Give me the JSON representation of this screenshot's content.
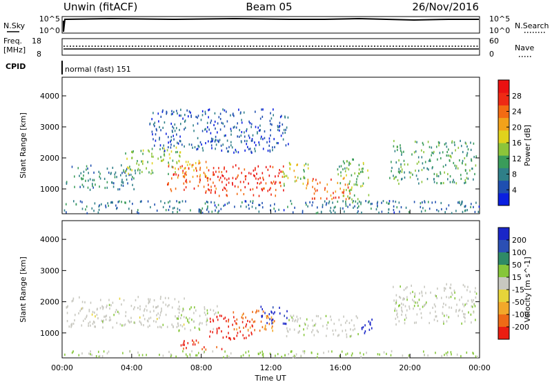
{
  "header": {
    "station": "Unwin (fitACF)",
    "beam": "Beam 05",
    "date": "26/Nov/2016"
  },
  "top_panels": {
    "nsky_label": "N.Sky",
    "nsky_ticks": [
      "10^5",
      "10^0"
    ],
    "nsearch_label": "N.Search",
    "nsearch_ticks": [
      "10^5",
      "10^0"
    ],
    "freq_label_1": "Freq.",
    "freq_label_2": "[MHz]",
    "freq_ticks": [
      "18",
      "8"
    ],
    "nave_label": "Nave",
    "nave_ticks": [
      "60",
      "0"
    ],
    "cpid_label": "CPID",
    "cpid_value": "normal (fast) 151"
  },
  "chart_data": [
    {
      "type": "heatmap",
      "panel": "power",
      "ylabel": "Slant Range [km]",
      "yticks": [
        "1000",
        "2000",
        "3000",
        "4000"
      ],
      "ylim": [
        200,
        4600
      ],
      "xlim": [
        0,
        24
      ],
      "colorbar": {
        "label": "Power [dB]",
        "ticks": [
          "4",
          "8",
          "12",
          "16",
          "20",
          "24",
          "28"
        ],
        "range": [
          0,
          32
        ],
        "colors": [
          "#0a1fe0",
          "#1f4fb0",
          "#2f7f88",
          "#3a9c5a",
          "#8cc43a",
          "#e0d21c",
          "#f2a21a",
          "#f36b12",
          "#ee2a14",
          "#ea1111"
        ]
      },
      "regions": [
        {
          "t0": 0.2,
          "t1": 4.2,
          "r0": 1000,
          "r1": 1800,
          "val": 8
        },
        {
          "t0": 3.6,
          "t1": 6.8,
          "r0": 1500,
          "r1": 2400,
          "val": 14
        },
        {
          "t0": 6.0,
          "t1": 9.0,
          "r0": 900,
          "r1": 1800,
          "val": 26
        },
        {
          "t0": 6.6,
          "t1": 8.4,
          "r0": 1400,
          "r1": 2000,
          "val": 20
        },
        {
          "t0": 9.0,
          "t1": 12.8,
          "r0": 800,
          "r1": 1800,
          "val": 28
        },
        {
          "t0": 12.6,
          "t1": 14.2,
          "r0": 1100,
          "r1": 1900,
          "val": 16
        },
        {
          "t0": 14.0,
          "t1": 16.6,
          "r0": 700,
          "r1": 1400,
          "val": 24
        },
        {
          "t0": 15.8,
          "t1": 17.6,
          "r0": 600,
          "r1": 2000,
          "val": 13
        },
        {
          "t0": 18.8,
          "t1": 23.8,
          "r0": 1200,
          "r1": 2600,
          "val": 11
        },
        {
          "t0": 0.0,
          "t1": 24.0,
          "r0": 250,
          "r1": 650,
          "val": 7
        },
        {
          "t0": 5.0,
          "t1": 13.0,
          "r0": 2200,
          "r1": 3600,
          "val": 5
        }
      ]
    },
    {
      "type": "heatmap",
      "panel": "velocity",
      "ylabel": "Slant Range [km]",
      "yticks": [
        "1000",
        "2000",
        "3000",
        "4000"
      ],
      "ylim": [
        200,
        4600
      ],
      "xlim": [
        0,
        24
      ],
      "xticks": [
        "00:00",
        "04:00",
        "08:00",
        "12:00",
        "16:00",
        "20:00",
        "00:00"
      ],
      "xlabel": "Time UT",
      "colorbar": {
        "label": "Velocity [m s^-1]",
        "ticks": [
          "200",
          "100",
          "50",
          "15",
          "-15",
          "-50",
          "-100",
          "-200"
        ],
        "range": [
          -250,
          250
        ],
        "colors": [
          "#1a26c8",
          "#2b4fb4",
          "#2f8a66",
          "#86c63a",
          "#c8c8c0",
          "#e6d43a",
          "#f2a82a",
          "#ee6a16",
          "#ea1d12"
        ]
      },
      "regions": [
        {
          "t0": 0.2,
          "t1": 7.0,
          "r0": 1200,
          "r1": 2200,
          "val": 0
        },
        {
          "t0": 6.6,
          "t1": 9.0,
          "r0": 1100,
          "r1": 1900,
          "val": 30
        },
        {
          "t0": 8.4,
          "t1": 11.0,
          "r0": 800,
          "r1": 1600,
          "val": -220
        },
        {
          "t0": 9.8,
          "t1": 12.2,
          "r0": 1100,
          "r1": 1800,
          "val": -150
        },
        {
          "t0": 11.4,
          "t1": 13.0,
          "r0": 1300,
          "r1": 1900,
          "val": 220
        },
        {
          "t0": 12.8,
          "t1": 17.0,
          "r0": 900,
          "r1": 1600,
          "val": 5
        },
        {
          "t0": 17.2,
          "t1": 17.9,
          "r0": 1000,
          "r1": 1700,
          "val": 230
        },
        {
          "t0": 19.0,
          "t1": 23.8,
          "r0": 1300,
          "r1": 2600,
          "val": 8
        },
        {
          "t0": 6.8,
          "t1": 9.2,
          "r0": 500,
          "r1": 800,
          "val": -200
        },
        {
          "t0": 0.0,
          "t1": 24.0,
          "r0": 250,
          "r1": 450,
          "val": 40
        }
      ]
    }
  ]
}
